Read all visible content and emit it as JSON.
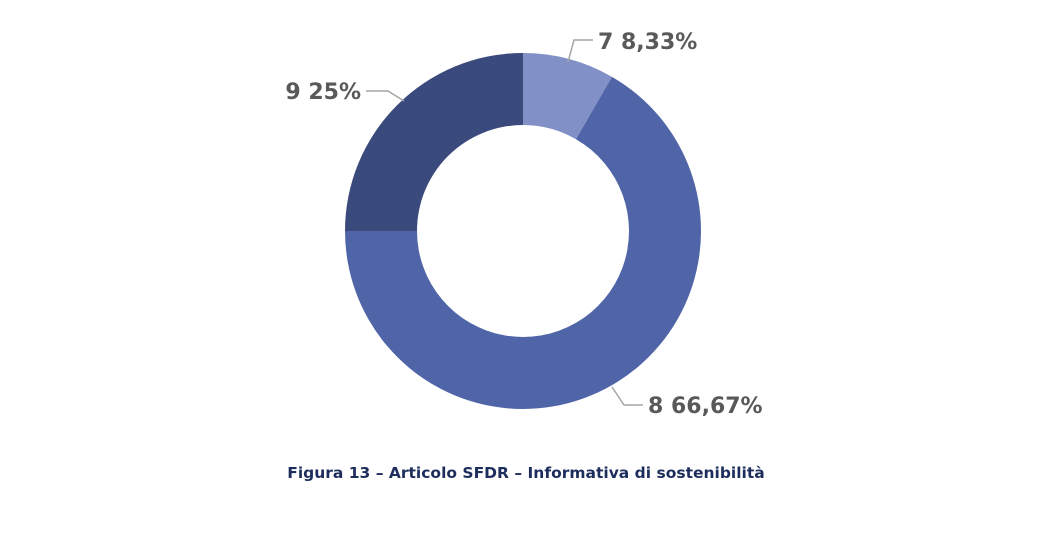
{
  "chart_data": {
    "type": "pie",
    "donut": true,
    "categories": [
      "7",
      "8",
      "9"
    ],
    "values": [
      8.33,
      66.67,
      25
    ],
    "labels": [
      "7 8,33%",
      "8 66,67%",
      "9 25%"
    ],
    "colors": [
      "#8190c6",
      "#5065a8",
      "#3b4a7d"
    ],
    "legend": false
  },
  "caption": "Figura 13 – Articolo SFDR – Informativa di sostenibilità"
}
